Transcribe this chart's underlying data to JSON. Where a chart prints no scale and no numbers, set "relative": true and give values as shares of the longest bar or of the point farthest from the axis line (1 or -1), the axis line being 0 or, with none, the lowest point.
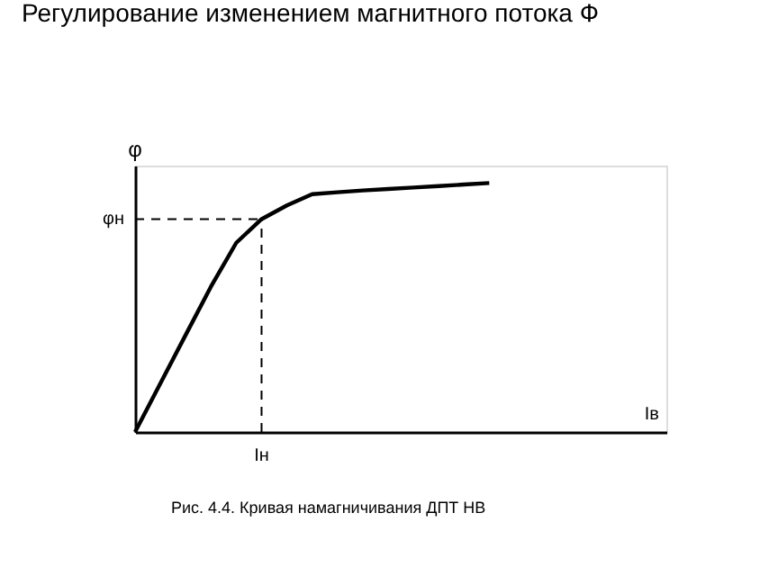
{
  "chart_data": {
    "type": "line",
    "title": "Регулирование изменением магнитного потока Ф",
    "xlabel": "Iв",
    "ylabel": "φ",
    "relative": true,
    "categories": [
      null,
      null,
      null,
      null,
      null,
      null,
      null,
      null,
      null,
      null,
      null,
      null,
      null,
      null,
      null,
      null,
      null,
      null,
      null,
      null,
      null,
      null
    ],
    "values": [
      0,
      0.195,
      0.39,
      0.584,
      0.76,
      0.855,
      0.91,
      0.955,
      0.963,
      0.97,
      0.976,
      0.982,
      0.988,
      0.994,
      1.0,
      null,
      null,
      null,
      null,
      null,
      null,
      null
    ],
    "color": "#000000",
    "tick_labels": false,
    "grid": false,
    "marker": "none",
    "line_style": "solid",
    "ref_lines": [
      {
        "axis": "y",
        "value": 0.855,
        "label": "φн",
        "line_style": "dashed"
      },
      {
        "axis": "x",
        "label": "Iн",
        "line_style": "dashed"
      }
    ],
    "annotations": [
      "Рис. 4.4. Кривая намагничивания ДПТ НВ"
    ]
  }
}
